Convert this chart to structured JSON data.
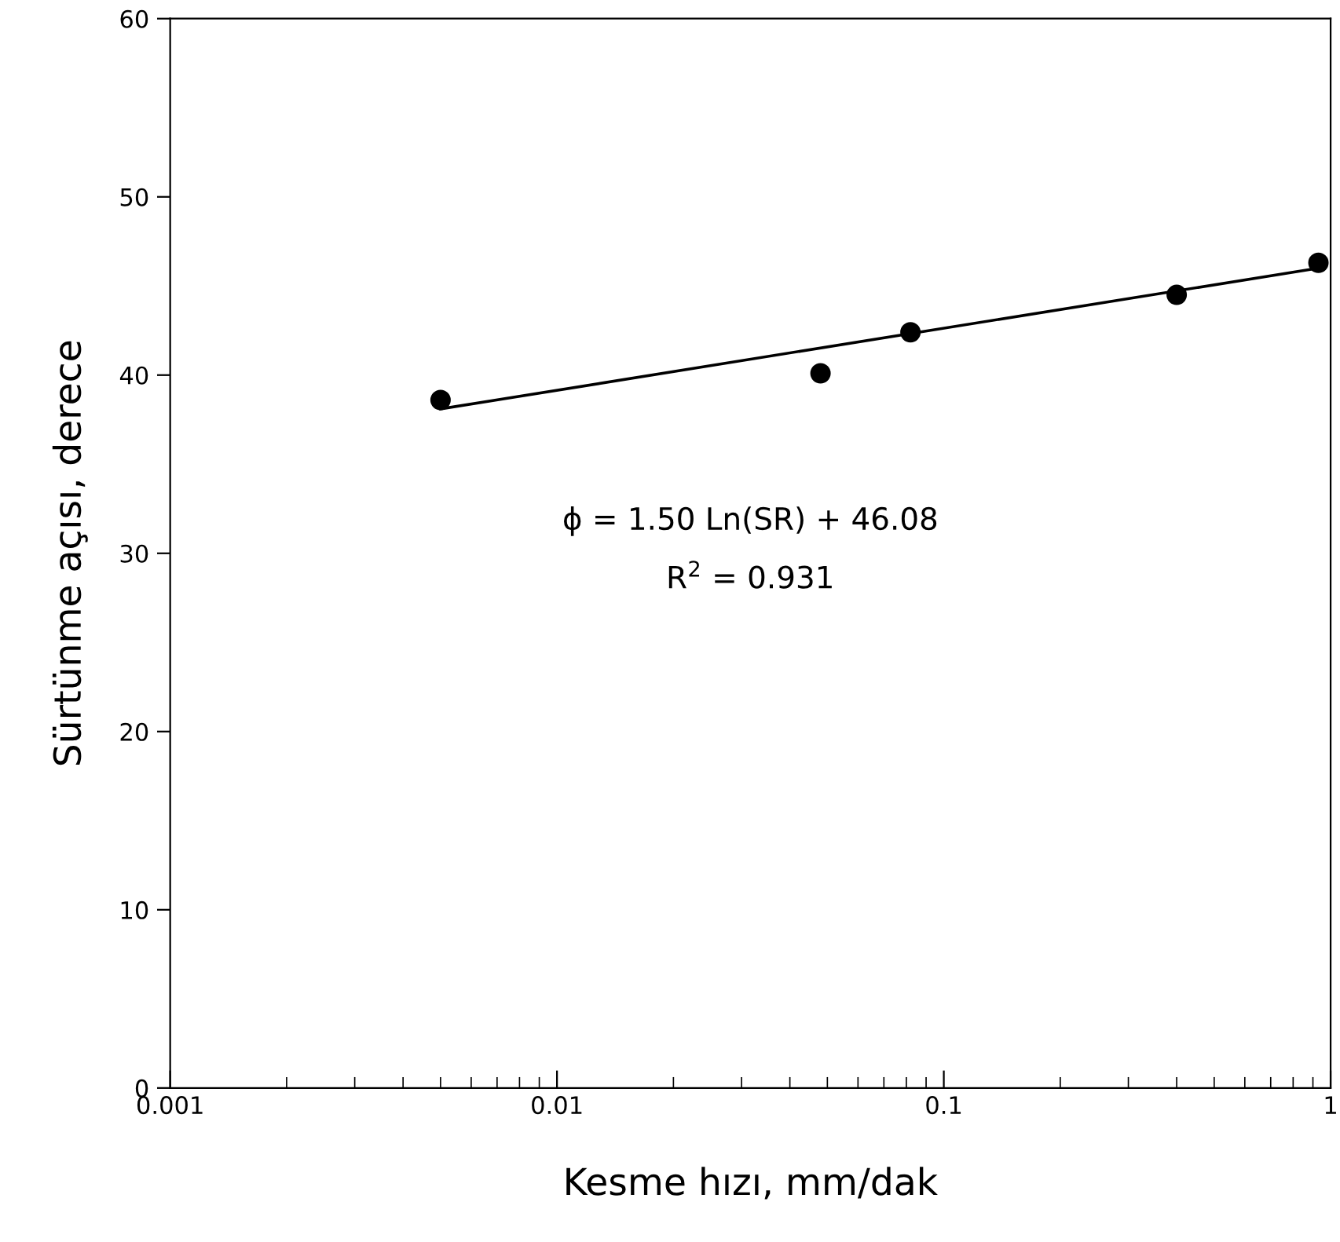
{
  "chart_data": {
    "type": "scatter",
    "xlabel": "Kesme hızı, mm/dak",
    "ylabel": "Sürtünme açısı, derece",
    "log": "x",
    "xlim": [
      0.001,
      1
    ],
    "xticks": [
      0.001,
      0.01,
      0.1,
      1
    ],
    "ylim": [
      0,
      60
    ],
    "yticks": [
      0,
      10,
      20,
      30,
      40,
      50,
      60
    ],
    "grid": false,
    "legend": false,
    "series": [
      {
        "marker": "circle",
        "color": "#000000",
        "x": [
          0.005,
          0.048,
          0.082,
          0.4,
          0.93
        ],
        "values": [
          38.6,
          40.1,
          42.4,
          44.5,
          46.3
        ]
      },
      {
        "type": "line",
        "marker": "none",
        "color": "#000000",
        "line_style": "solid",
        "x": [
          0.005,
          0.93
        ],
        "values": [
          38.1,
          46.0
        ]
      }
    ],
    "annotations": [
      "ϕ = 1.50 Ln(SR) + 46.08",
      "R$^{2}$ = 0.931"
    ]
  }
}
